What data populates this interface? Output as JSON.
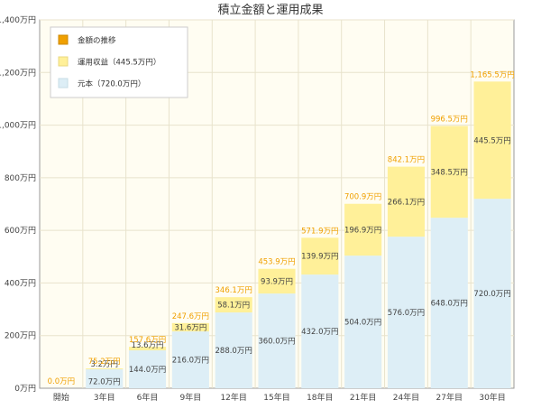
{
  "chart_data": {
    "type": "bar",
    "title": "積立金額と運用成果",
    "categories": [
      "開始",
      "3年目",
      "6年目",
      "9年目",
      "12年目",
      "15年目",
      "18年目",
      "21年目",
      "24年目",
      "27年目",
      "30年目"
    ],
    "series": [
      {
        "name": "元本（720.0万円）",
        "color": "#ddeef6",
        "values": [
          0,
          72.0,
          144.0,
          216.0,
          288.0,
          360.0,
          432.0,
          504.0,
          576.0,
          648.0,
          720.0
        ],
        "labels": [
          "",
          "72.0万円",
          "144.0万円",
          "216.0万円",
          "288.0万円",
          "360.0万円",
          "432.0万円",
          "504.0万円",
          "576.0万円",
          "648.0万円",
          "720.0万円"
        ]
      },
      {
        "name": "運用収益（445.5万円）",
        "color": "#fff099",
        "values": [
          0,
          3.2,
          13.6,
          31.6,
          58.1,
          93.9,
          139.9,
          196.9,
          266.1,
          348.5,
          445.5
        ],
        "labels": [
          "",
          "3.2万円",
          "13.6万円",
          "31.6万円",
          "58.1万円",
          "93.9万円",
          "139.9万円",
          "196.9万円",
          "266.1万円",
          "348.5万円",
          "445.5万円"
        ]
      }
    ],
    "totals": {
      "name": "金額の推移",
      "color": "#f0a000",
      "values": [
        0.0,
        75.2,
        157.6,
        247.6,
        346.1,
        453.9,
        571.9,
        700.9,
        842.1,
        996.5,
        1165.5
      ],
      "labels": [
        "0.0万円",
        "75.2万円",
        "157.6万円",
        "247.6万円",
        "346.1万円",
        "453.9万円",
        "571.9万円",
        "700.9万円",
        "842.1万円",
        "996.5万円",
        "1,165.5万円"
      ]
    },
    "yticks": [
      0,
      200,
      400,
      600,
      800,
      1000,
      1200,
      1400
    ],
    "ytick_labels": [
      "0万円",
      "200万円",
      "400万円",
      "600万円",
      "800万円",
      "1,000万円",
      "1,200万円",
      "1,400万円"
    ],
    "ylim": [
      0,
      1400
    ],
    "grid": true,
    "legend_position": "top-left",
    "colors": {
      "background": "#fffdf2",
      "grid": "#e8e3cc",
      "axis": "#999999"
    }
  }
}
